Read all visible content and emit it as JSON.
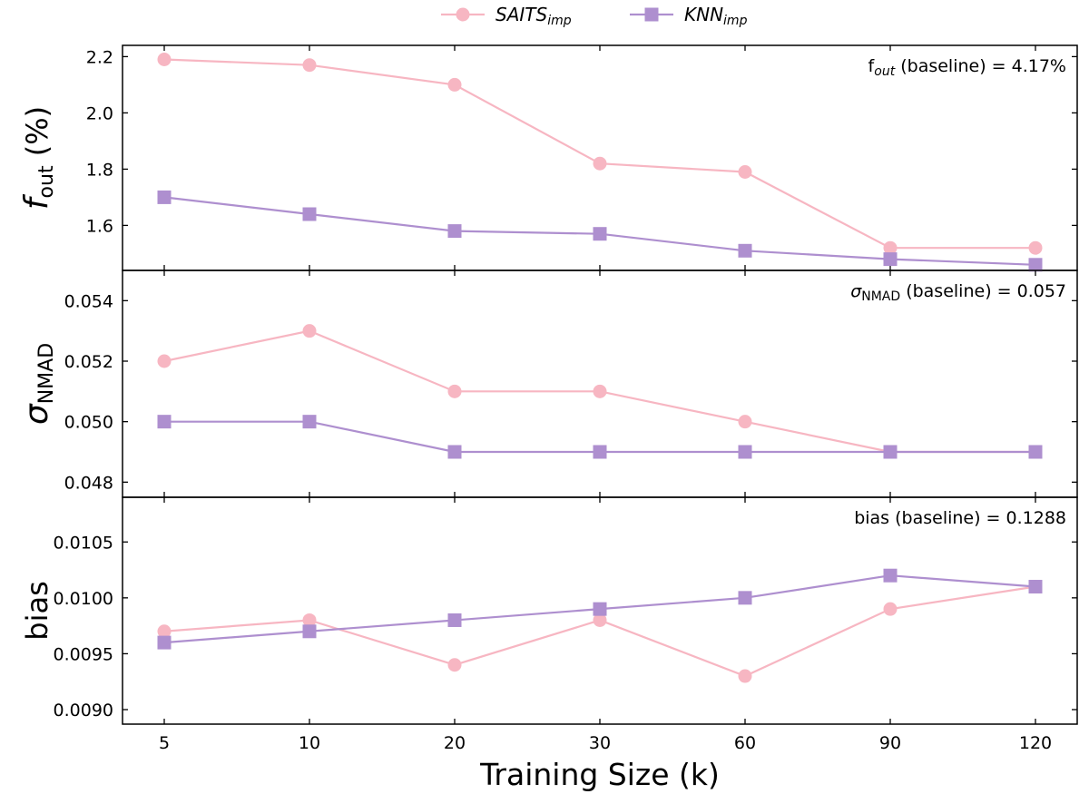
{
  "chart_data": [
    {
      "type": "line",
      "panel": "top",
      "x": [
        "5",
        "10",
        "20",
        "30",
        "60",
        "90",
        "120"
      ],
      "ylabel": {
        "main": "f",
        "sub": "out",
        "unit": " (%)"
      },
      "ylim": [
        1.44,
        2.24
      ],
      "yticks": [
        1.6,
        1.8,
        2.0,
        2.2
      ],
      "ytick_labels": [
        "1.6",
        "1.8",
        "2.0",
        "2.2"
      ],
      "annotation": {
        "prefix": "f",
        "sub": "out",
        "suffix": " (baseline) = 4.17%"
      },
      "series": [
        {
          "name": "SAITS",
          "name_sub": "imp",
          "values": [
            2.19,
            2.17,
            2.1,
            1.82,
            1.79,
            1.52,
            1.52
          ]
        },
        {
          "name": "KNN",
          "name_sub": "imp",
          "values": [
            1.7,
            1.64,
            1.58,
            1.57,
            1.51,
            1.48,
            1.46
          ]
        }
      ]
    },
    {
      "type": "line",
      "panel": "middle",
      "x": [
        "5",
        "10",
        "20",
        "30",
        "60",
        "90",
        "120"
      ],
      "ylabel": {
        "main": "σ",
        "sub": "NMAD",
        "unit": ""
      },
      "ylim": [
        0.0475,
        0.055
      ],
      "yticks": [
        0.048,
        0.05,
        0.052,
        0.054
      ],
      "ytick_labels": [
        "0.048",
        "0.050",
        "0.052",
        "0.054"
      ],
      "annotation": {
        "prefix": "σ",
        "sub": "NMAD",
        "suffix": " (baseline) = 0.057"
      },
      "series": [
        {
          "name": "SAITS",
          "name_sub": "imp",
          "values": [
            0.052,
            0.053,
            0.051,
            0.051,
            0.05,
            0.049,
            0.049
          ]
        },
        {
          "name": "KNN",
          "name_sub": "imp",
          "values": [
            0.05,
            0.05,
            0.049,
            0.049,
            0.049,
            0.049,
            0.049
          ]
        }
      ]
    },
    {
      "type": "line",
      "panel": "bottom",
      "x": [
        "5",
        "10",
        "20",
        "30",
        "60",
        "90",
        "120"
      ],
      "xlabel": "Training Size (k)",
      "ylabel": {
        "main": "bias",
        "sub": "",
        "unit": ""
      },
      "ylim": [
        0.00887,
        0.0109
      ],
      "yticks": [
        0.009,
        0.0095,
        0.01,
        0.0105
      ],
      "ytick_labels": [
        "0.0090",
        "0.0095",
        "0.0100",
        "0.0105"
      ],
      "annotation": {
        "prefix": "bias",
        "sub": "",
        "suffix": " (baseline) = 0.1288"
      },
      "series": [
        {
          "name": "SAITS",
          "name_sub": "imp",
          "values": [
            0.0097,
            0.0098,
            0.0094,
            0.0098,
            0.0093,
            0.0099,
            0.0101
          ]
        },
        {
          "name": "KNN",
          "name_sub": "imp",
          "values": [
            0.0096,
            0.0097,
            0.0098,
            0.0099,
            0.01,
            0.0102,
            0.0101
          ]
        }
      ]
    }
  ],
  "legend": {
    "placement": "top-center",
    "entries": [
      {
        "name": "SAITS",
        "sub": "imp",
        "marker": "circle",
        "color": "#f7b6c2"
      },
      {
        "name": "KNN",
        "sub": "imp",
        "marker": "square",
        "color": "#ae8fcf"
      }
    ]
  },
  "colors": {
    "saits": "#f7b6c2",
    "knn": "#ae8fcf"
  },
  "grid": false
}
